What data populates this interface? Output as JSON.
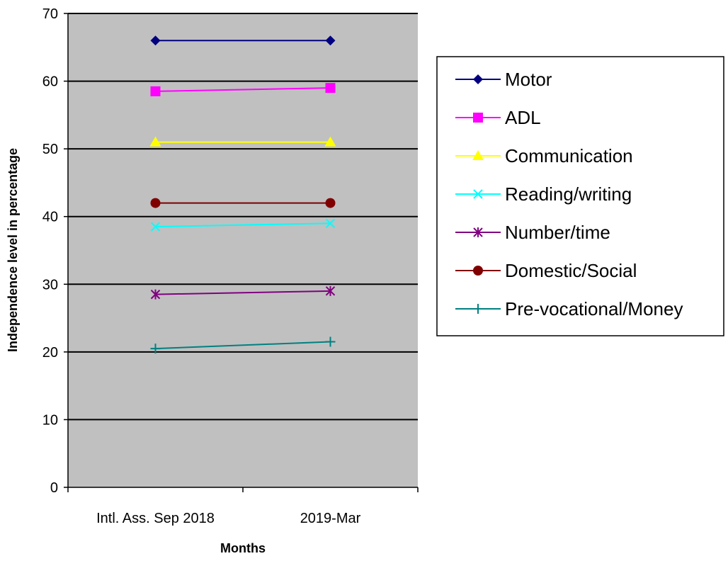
{
  "chart_data": {
    "type": "line",
    "title": "",
    "xlabel": "Months",
    "ylabel": "Independence level in percentage",
    "categories": [
      "Intl. Ass. Sep 2018",
      "2019-Mar"
    ],
    "ylim": [
      0,
      70
    ],
    "yticks": [
      0,
      10,
      20,
      30,
      40,
      50,
      60,
      70
    ],
    "grid": true,
    "plot_background": "#c0c0c0",
    "legend_position": "right",
    "series": [
      {
        "name": "Motor",
        "values": [
          66,
          66
        ],
        "color": "#000080",
        "marker": "diamond"
      },
      {
        "name": "ADL",
        "values": [
          58.5,
          59
        ],
        "color": "#ff00ff",
        "marker": "square"
      },
      {
        "name": "Communication",
        "values": [
          51,
          51
        ],
        "color": "#ffff00",
        "marker": "triangle"
      },
      {
        "name": "Reading/writing",
        "values": [
          38.5,
          39
        ],
        "color": "#00ffff",
        "marker": "x"
      },
      {
        "name": "Number/time",
        "values": [
          28.5,
          29
        ],
        "color": "#800080",
        "marker": "star"
      },
      {
        "name": "Domestic/Social",
        "values": [
          42,
          42
        ],
        "color": "#800000",
        "marker": "circle"
      },
      {
        "name": "Pre-vocational/Money",
        "values": [
          20.5,
          21.5
        ],
        "color": "#008080",
        "marker": "plus"
      }
    ]
  }
}
